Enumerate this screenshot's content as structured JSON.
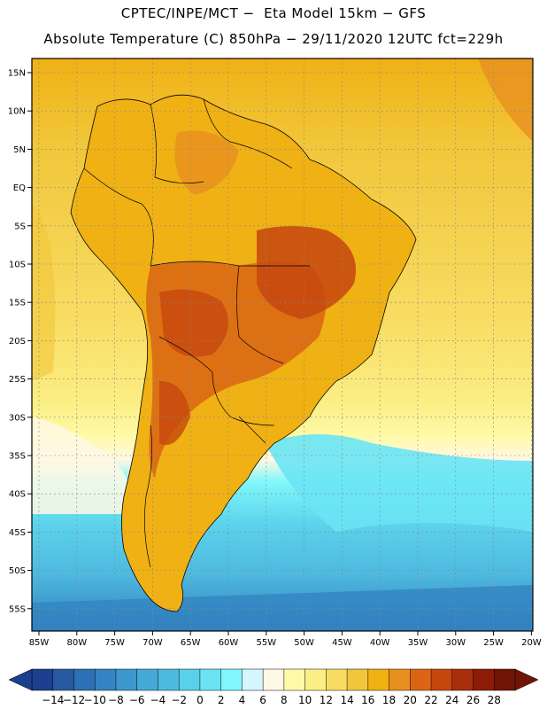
{
  "header": {
    "line1": "CPTEC/INPE/MCT −  Eta Model 15km − GFS",
    "line2": "Absolute Temperature (C) 850hPa − 29/11/2020 12UTC fct=229h"
  },
  "axes": {
    "lat_labels": [
      "15N",
      "10N",
      "5N",
      "EQ",
      "5S",
      "10S",
      "15S",
      "20S",
      "25S",
      "30S",
      "35S",
      "40S",
      "45S",
      "50S",
      "55S"
    ],
    "lon_labels": [
      "85W",
      "80W",
      "75W",
      "70W",
      "65W",
      "60W",
      "55W",
      "50W",
      "45W",
      "40W",
      "35W",
      "30W",
      "25W",
      "20W"
    ]
  },
  "colorbar": {
    "labels": [
      "-14",
      "-12",
      "-10",
      "-8",
      "-6",
      "-4",
      "-2",
      "0",
      "2",
      "4",
      "6",
      "8",
      "10",
      "12",
      "14",
      "16",
      "18",
      "20",
      "22",
      "24",
      "26",
      "28"
    ],
    "colors": [
      "#1d3f8f",
      "#255aa3",
      "#2c70b5",
      "#3384c2",
      "#3c97cc",
      "#45aad6",
      "#4fbadf",
      "#5ad0ea",
      "#6ae4f4",
      "#7ff7fb",
      "#d4f6fc",
      "#fff8e4",
      "#fffaa8",
      "#fbee84",
      "#f8dc62",
      "#f1c63a",
      "#f0b114",
      "#e8901f",
      "#db6514",
      "#c5470e",
      "#a92f0a",
      "#8c1c07",
      "#701406"
    ]
  }
}
